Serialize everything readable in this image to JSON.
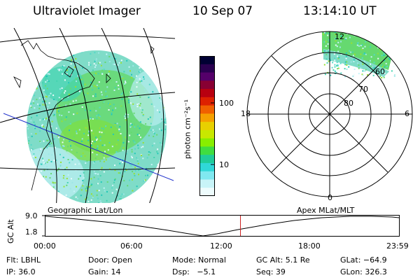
{
  "header": {
    "instrument": "Ultraviolet Imager",
    "date": "10 Sep 07",
    "time": "13:14:10 UT"
  },
  "colorbar": {
    "unit_label": "photon cm⁻²s⁻¹",
    "ticks": [
      {
        "value": 100,
        "label": "100"
      },
      {
        "value": 10,
        "label": "10"
      }
    ],
    "colors": [
      "#000033",
      "#2a0050",
      "#55006a",
      "#880033",
      "#b80010",
      "#dd2000",
      "#f06000",
      "#f5a000",
      "#e8d000",
      "#c8e800",
      "#88ee00",
      "#40dd40",
      "#20cc99",
      "#30d8d8",
      "#80e8f0",
      "#c8f4f8",
      "#eefcfd"
    ]
  },
  "left_panel": {
    "caption": "Geographic Lat/Lon"
  },
  "right_panel": {
    "caption": "Apex MLat/MLT",
    "mlt_labels": {
      "top": "12",
      "bottom": "0",
      "left": "18",
      "right": "6"
    },
    "lat_labels": [
      "60",
      "70",
      "80"
    ]
  },
  "orbit_plot": {
    "ylabel": "GC Alt",
    "yticks": [
      "9.0",
      "1.8"
    ],
    "xticks": [
      "00:00",
      "06:00",
      "12:00",
      "18:00",
      "23:59"
    ],
    "current_time_hours": 13.236
  },
  "footer": {
    "filter": "Flt: LBHL",
    "door": "Door: Open",
    "mode": "Mode: Normal",
    "gc_alt": "GC Alt: 5.1 Re",
    "glat": "GLat: −64.9",
    "ip": "IP: 36.0",
    "gain": "Gain: 14",
    "dsp": "Dsp:   −5.1",
    "seq": "Seq: 39",
    "glon": "GLon: 326.3"
  }
}
